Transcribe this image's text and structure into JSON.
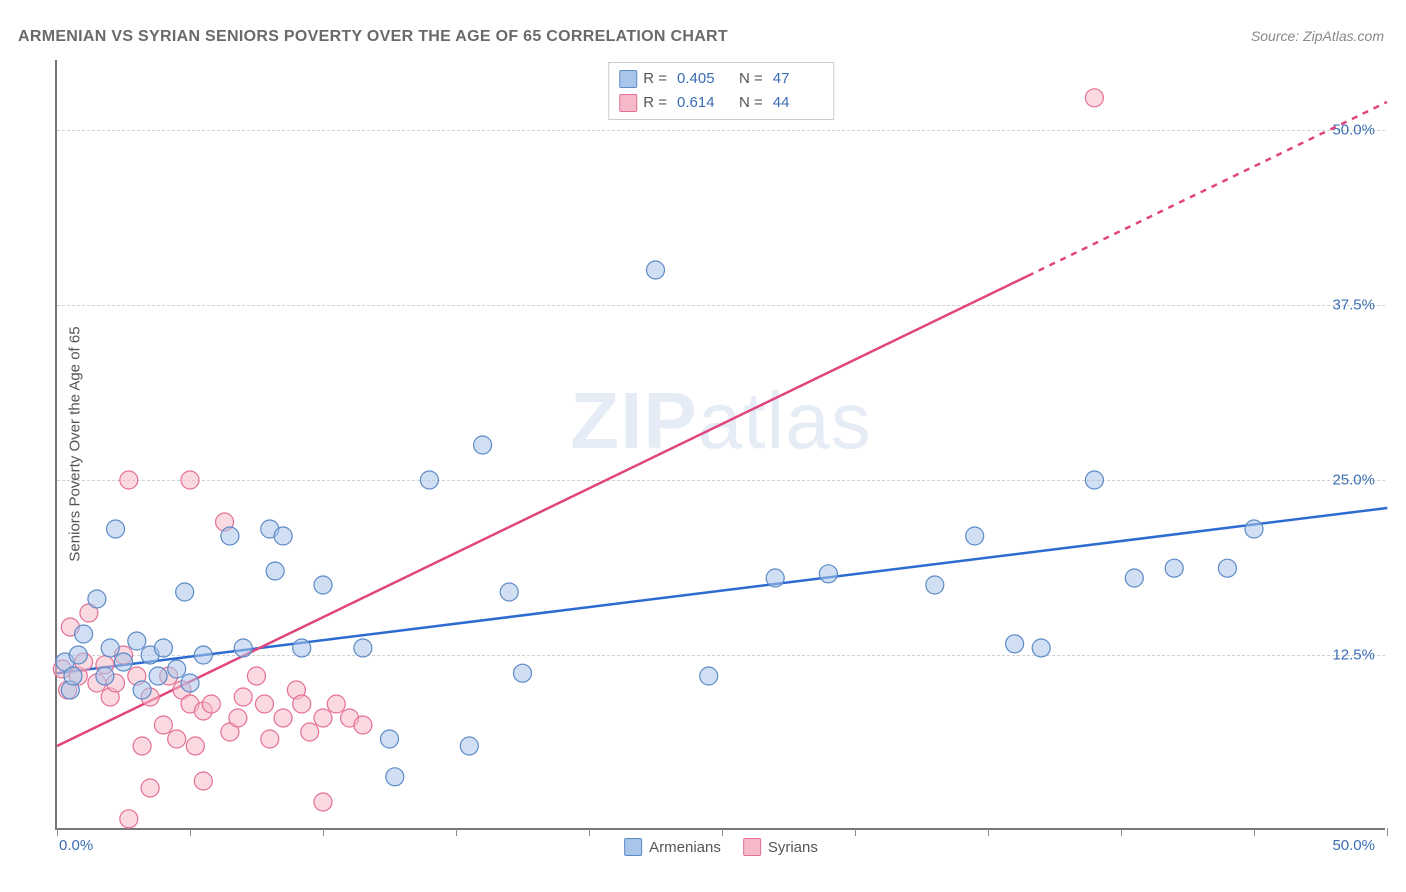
{
  "title": "ARMENIAN VS SYRIAN SENIORS POVERTY OVER THE AGE OF 65 CORRELATION CHART",
  "source": "Source: ZipAtlas.com",
  "y_axis_label": "Seniors Poverty Over the Age of 65",
  "watermark": {
    "prefix": "ZIP",
    "suffix": "atlas"
  },
  "chart": {
    "type": "scatter",
    "background_color": "#ffffff",
    "grid_color": "#d0d0d0",
    "axis_color": "#777777",
    "xlim": [
      0,
      50
    ],
    "ylim": [
      0,
      55
    ],
    "x_tick_positions": [
      0,
      5,
      10,
      15,
      20,
      25,
      30,
      35,
      40,
      45,
      50
    ],
    "x_tick_labels": {
      "first": "0.0%",
      "last": "50.0%"
    },
    "y_gridlines": [
      12.5,
      25,
      37.5,
      50
    ],
    "y_tick_labels": [
      "12.5%",
      "25.0%",
      "37.5%",
      "50.0%"
    ],
    "marker_radius": 9,
    "marker_opacity": 0.55,
    "line_width": 2.5,
    "series": [
      {
        "name": "Armenians",
        "color_fill": "#a9c5ea",
        "color_stroke": "#5b8ac7",
        "line_color": "#2d6bd1",
        "R": "0.405",
        "N": "47",
        "trend": {
          "x1": 0,
          "y1": 11.2,
          "x2": 50,
          "y2": 23.0
        },
        "trend_dash_from_x": 50,
        "points": [
          {
            "x": 0.3,
            "y": 12.0
          },
          {
            "x": 0.5,
            "y": 10.0
          },
          {
            "x": 0.6,
            "y": 11.0
          },
          {
            "x": 0.8,
            "y": 12.5
          },
          {
            "x": 1.0,
            "y": 14.0
          },
          {
            "x": 1.5,
            "y": 16.5
          },
          {
            "x": 1.8,
            "y": 11.0
          },
          {
            "x": 2.0,
            "y": 13.0
          },
          {
            "x": 2.2,
            "y": 21.5
          },
          {
            "x": 2.5,
            "y": 12.0
          },
          {
            "x": 3.0,
            "y": 13.5
          },
          {
            "x": 3.2,
            "y": 10.0
          },
          {
            "x": 3.5,
            "y": 12.5
          },
          {
            "x": 3.8,
            "y": 11.0
          },
          {
            "x": 4.0,
            "y": 13.0
          },
          {
            "x": 4.5,
            "y": 11.5
          },
          {
            "x": 4.8,
            "y": 17.0
          },
          {
            "x": 5.0,
            "y": 10.5
          },
          {
            "x": 5.5,
            "y": 12.5
          },
          {
            "x": 6.5,
            "y": 21.0
          },
          {
            "x": 7.0,
            "y": 13.0
          },
          {
            "x": 8.0,
            "y": 21.5
          },
          {
            "x": 8.2,
            "y": 18.5
          },
          {
            "x": 8.5,
            "y": 21.0
          },
          {
            "x": 9.2,
            "y": 13.0
          },
          {
            "x": 10.0,
            "y": 17.5
          },
          {
            "x": 11.5,
            "y": 13.0
          },
          {
            "x": 12.5,
            "y": 6.5
          },
          {
            "x": 12.7,
            "y": 3.8
          },
          {
            "x": 14.0,
            "y": 25.0
          },
          {
            "x": 15.5,
            "y": 6.0
          },
          {
            "x": 16.0,
            "y": 27.5
          },
          {
            "x": 17.0,
            "y": 17.0
          },
          {
            "x": 17.5,
            "y": 11.2
          },
          {
            "x": 22.5,
            "y": 40.0
          },
          {
            "x": 24.5,
            "y": 11.0
          },
          {
            "x": 27.0,
            "y": 18.0
          },
          {
            "x": 29.0,
            "y": 18.3
          },
          {
            "x": 33.0,
            "y": 17.5
          },
          {
            "x": 34.5,
            "y": 21.0
          },
          {
            "x": 36.0,
            "y": 13.3
          },
          {
            "x": 37.0,
            "y": 13.0
          },
          {
            "x": 39.0,
            "y": 25.0
          },
          {
            "x": 40.5,
            "y": 18.0
          },
          {
            "x": 42.0,
            "y": 18.7
          },
          {
            "x": 44.0,
            "y": 18.7
          },
          {
            "x": 45.0,
            "y": 21.5
          }
        ]
      },
      {
        "name": "Syrians",
        "color_fill": "#f5b9c9",
        "color_stroke": "#e56f94",
        "line_color": "#e0457d",
        "R": "0.614",
        "N": "44",
        "trend": {
          "x1": 0,
          "y1": 6.0,
          "x2": 50,
          "y2": 52.0
        },
        "trend_dash_from_x": 36.5,
        "points": [
          {
            "x": 0.2,
            "y": 11.5
          },
          {
            "x": 0.4,
            "y": 10.0
          },
          {
            "x": 0.5,
            "y": 14.5
          },
          {
            "x": 0.8,
            "y": 11.0
          },
          {
            "x": 1.0,
            "y": 12.0
          },
          {
            "x": 1.2,
            "y": 15.5
          },
          {
            "x": 1.5,
            "y": 10.5
          },
          {
            "x": 1.8,
            "y": 11.8
          },
          {
            "x": 2.0,
            "y": 9.5
          },
          {
            "x": 2.2,
            "y": 10.5
          },
          {
            "x": 2.5,
            "y": 12.5
          },
          {
            "x": 2.7,
            "y": 25.0
          },
          {
            "x": 2.7,
            "y": 0.8
          },
          {
            "x": 3.0,
            "y": 11.0
          },
          {
            "x": 3.2,
            "y": 6.0
          },
          {
            "x": 3.5,
            "y": 3.0
          },
          {
            "x": 3.5,
            "y": 9.5
          },
          {
            "x": 4.0,
            "y": 7.5
          },
          {
            "x": 4.2,
            "y": 11.0
          },
          {
            "x": 4.5,
            "y": 6.5
          },
          {
            "x": 4.7,
            "y": 10.0
          },
          {
            "x": 5.0,
            "y": 9.0
          },
          {
            "x": 5.0,
            "y": 25.0
          },
          {
            "x": 5.2,
            "y": 6.0
          },
          {
            "x": 5.5,
            "y": 8.5
          },
          {
            "x": 5.5,
            "y": 3.5
          },
          {
            "x": 5.8,
            "y": 9.0
          },
          {
            "x": 6.3,
            "y": 22.0
          },
          {
            "x": 6.5,
            "y": 7.0
          },
          {
            "x": 6.8,
            "y": 8.0
          },
          {
            "x": 7.0,
            "y": 9.5
          },
          {
            "x": 7.5,
            "y": 11.0
          },
          {
            "x": 7.8,
            "y": 9.0
          },
          {
            "x": 8.0,
            "y": 6.5
          },
          {
            "x": 8.5,
            "y": 8.0
          },
          {
            "x": 9.0,
            "y": 10.0
          },
          {
            "x": 9.2,
            "y": 9.0
          },
          {
            "x": 9.5,
            "y": 7.0
          },
          {
            "x": 10.0,
            "y": 8.0
          },
          {
            "x": 10.0,
            "y": 2.0
          },
          {
            "x": 10.5,
            "y": 9.0
          },
          {
            "x": 11.0,
            "y": 8.0
          },
          {
            "x": 11.5,
            "y": 7.5
          },
          {
            "x": 39.0,
            "y": 52.3
          }
        ]
      }
    ]
  },
  "legend": {
    "items": [
      "Armenians",
      "Syrians"
    ]
  },
  "typography": {
    "title_fontsize": 16,
    "label_fontsize": 15,
    "tick_fontsize": 15
  }
}
